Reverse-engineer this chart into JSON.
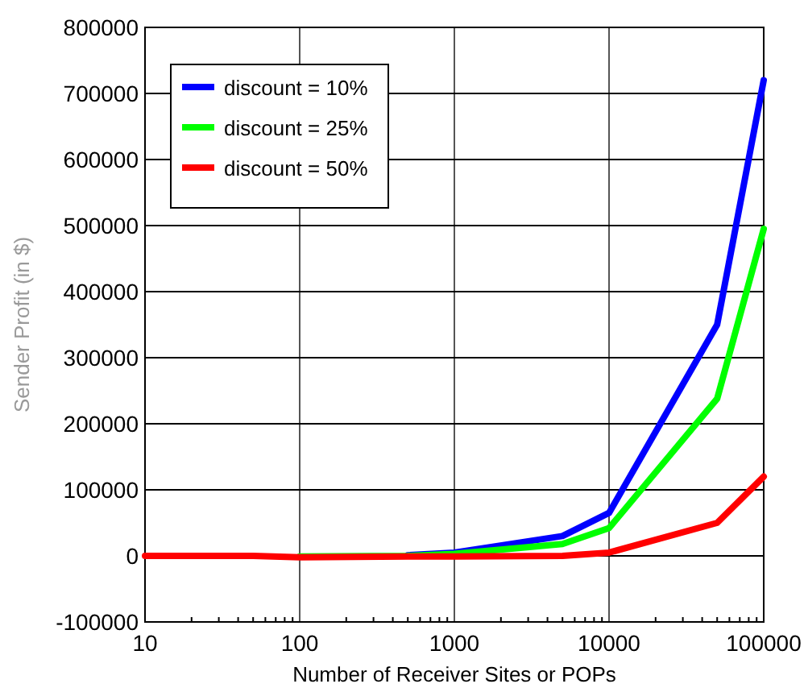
{
  "chart_data": {
    "type": "line",
    "xlabel": "Number of Receiver Sites or POPs",
    "ylabel": "Sender Profit (in $)",
    "x": [
      10,
      50,
      100,
      500,
      1000,
      5000,
      10000,
      50000,
      100000
    ],
    "series": [
      {
        "name": "discount = 10%",
        "color": "#0000ff",
        "values": [
          null,
          null,
          null,
          1000,
          5000,
          30000,
          65000,
          350000,
          720000
        ]
      },
      {
        "name": "discount = 25%",
        "color": "#00ff00",
        "values": [
          null,
          null,
          -1000,
          0,
          3000,
          18000,
          42000,
          238000,
          495000
        ]
      },
      {
        "name": "discount = 50%",
        "color": "#ff0000",
        "values": [
          0,
          0,
          -2000,
          -1000,
          -1000,
          0,
          5000,
          50000,
          120000
        ]
      }
    ],
    "xlim": [
      10,
      100000
    ],
    "xticks": [
      10,
      100,
      1000,
      10000,
      100000
    ],
    "ylim": [
      -100000,
      800000
    ],
    "yticks": [
      -100000,
      0,
      100000,
      200000,
      300000,
      400000,
      500000,
      600000,
      700000,
      800000
    ],
    "log": "x",
    "grid": true,
    "legend": "top left",
    "marker": "none",
    "line_style": "solid"
  }
}
